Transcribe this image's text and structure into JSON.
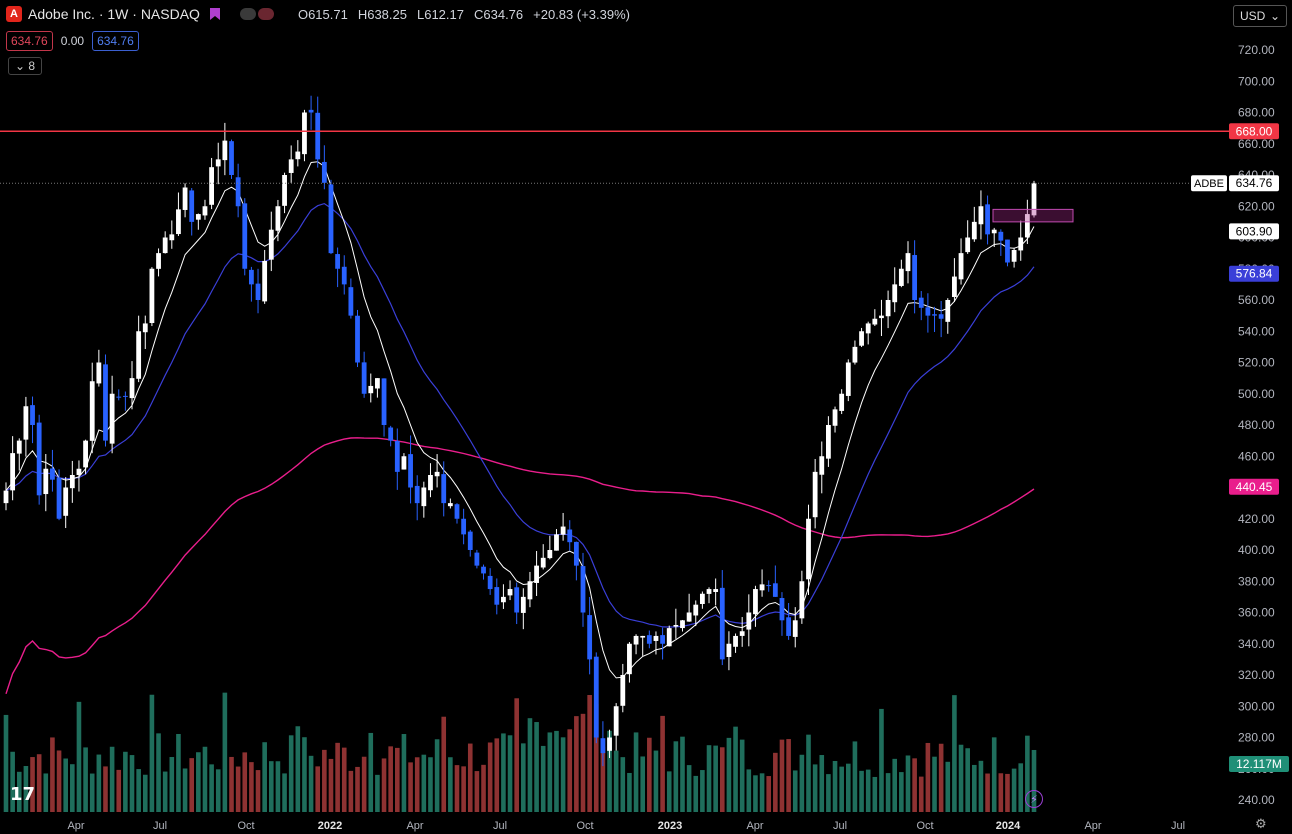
{
  "header": {
    "logo_letter": "A",
    "title": "Adobe Inc. · 1W · NASDAQ",
    "open": "O615.71",
    "high": "H638.25",
    "low": "L612.17",
    "close": "C634.76",
    "change": "+20.83 (+3.39%)",
    "sell_price": "634.76",
    "spread": "0.00",
    "buy_price": "634.76",
    "indicators_toggle": "8"
  },
  "currency": "USD",
  "colors": {
    "up_candle": "#ffffff",
    "down_candle": "#2962ff",
    "ema_short": "#ffffff",
    "ema_mid": "#3a3fd8",
    "ma_long": "#e91e8c",
    "resistance": "#f23645",
    "vol_up": "#1f6e5c",
    "vol_down": "#8e3232"
  },
  "chart_data": {
    "type": "candlestick",
    "symbol": "ADBE",
    "interval": "1W",
    "ylim": [
      230,
      730
    ],
    "y_ticks": [
      240,
      260,
      280,
      300,
      320,
      340,
      360,
      380,
      400,
      420,
      440,
      460,
      480,
      500,
      520,
      540,
      560,
      580,
      600,
      620,
      640,
      660,
      680,
      700,
      720
    ],
    "x_ticks": [
      "Apr",
      "Jul",
      "Oct",
      "2022",
      "Apr",
      "Jul",
      "Oct",
      "2023",
      "Apr",
      "Jul",
      "Oct",
      "2024",
      "Apr",
      "Jul"
    ],
    "resistance_level": 668.0,
    "resistance_label": "668.00",
    "last_price_label": "634.76",
    "symbol_label": "ADBE",
    "ema_short_label": "603.90",
    "ema_mid_label": "576.84",
    "ma_long_label": "440.45",
    "volume_label": "12.117M",
    "highlight_zone": [
      610,
      616
    ],
    "close_path": [
      438,
      462,
      470,
      492,
      480,
      435,
      452,
      445,
      420,
      440,
      448,
      452,
      470,
      508,
      520,
      470,
      500,
      498,
      498,
      510,
      540,
      545,
      580,
      590,
      600,
      602,
      618,
      632,
      610,
      615,
      620,
      645,
      650,
      662,
      640,
      620,
      580,
      570,
      560,
      585,
      605,
      620,
      640,
      650,
      655,
      680,
      680,
      650,
      635,
      590,
      580,
      570,
      550,
      520,
      500,
      505,
      510,
      480,
      470,
      450,
      460,
      440,
      430,
      440,
      448,
      450,
      430,
      430,
      420,
      410,
      400,
      390,
      385,
      375,
      365,
      370,
      375,
      360,
      370,
      380,
      390,
      395,
      400,
      410,
      415,
      405,
      390,
      360,
      330,
      280,
      270,
      280,
      300,
      320,
      340,
      345,
      345,
      340,
      345,
      340,
      350,
      352,
      355,
      360,
      365,
      372,
      375,
      375,
      330,
      340,
      345,
      348,
      360,
      375,
      378,
      377,
      370,
      355,
      345,
      355,
      380,
      420,
      450,
      460,
      480,
      490,
      500,
      520,
      530,
      540,
      545,
      548,
      550,
      560,
      570,
      580,
      590,
      560,
      555,
      550,
      550,
      548,
      560,
      575,
      590,
      600,
      610,
      620,
      602,
      605,
      598,
      584,
      592,
      600,
      615,
      634.76
    ],
    "ema_short_end": 603.9,
    "ema_mid_end": 576.84,
    "ma_long_end": 440.45
  }
}
